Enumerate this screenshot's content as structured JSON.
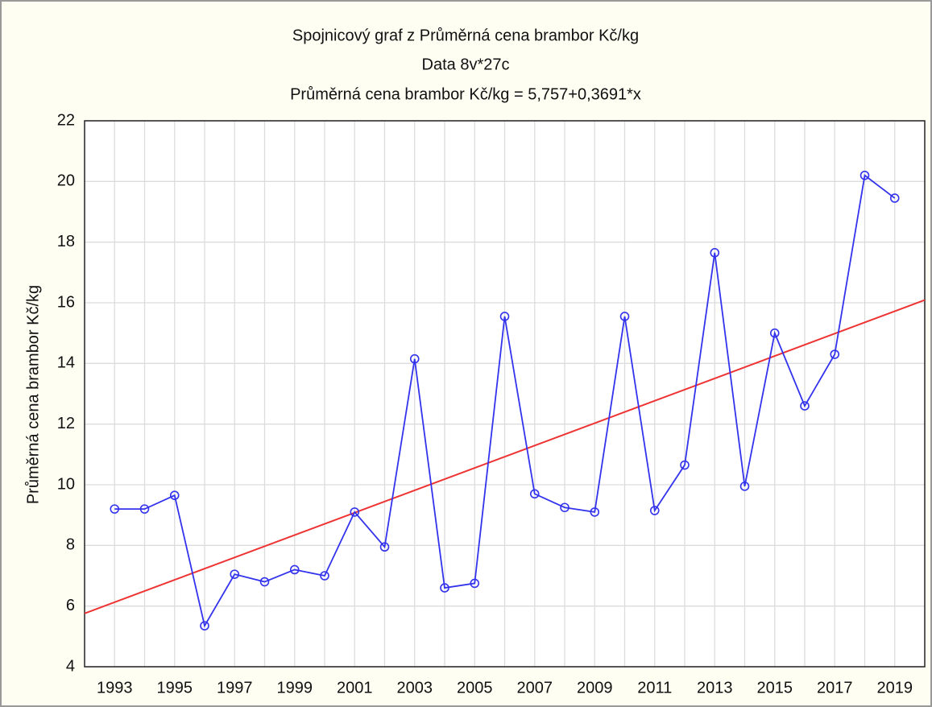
{
  "chart_data": {
    "type": "line",
    "title": "Spojnicový graf z Průměrná cena brambor Kč/kg",
    "subtitle": "Data 8v*27c",
    "equation": "Průměrná cena brambor Kč/kg = 5,757+0,3691*x",
    "ylabel": "Průměrná cena brambor Kč/kg",
    "x": [
      1993,
      1994,
      1995,
      1996,
      1997,
      1998,
      1999,
      2000,
      2001,
      2002,
      2003,
      2004,
      2005,
      2006,
      2007,
      2008,
      2009,
      2010,
      2011,
      2012,
      2013,
      2014,
      2015,
      2016,
      2017,
      2018,
      2019
    ],
    "series": [
      {
        "color": "#3333ee",
        "values": [
          9.2,
          9.2,
          9.65,
          5.35,
          7.05,
          6.8,
          7.2,
          7.0,
          9.1,
          7.95,
          14.15,
          6.6,
          6.75,
          15.55,
          9.7,
          9.25,
          9.1,
          15.55,
          9.15,
          10.65,
          17.65,
          9.95,
          15.0,
          12.6,
          14.3,
          20.2,
          19.45
        ]
      }
    ],
    "trend": {
      "color": "#ee3333",
      "x": [
        1992,
        2020
      ],
      "values": [
        5.757,
        16.09
      ]
    },
    "xlim": [
      1992,
      2020
    ],
    "xticks": [
      1993,
      1995,
      1997,
      1999,
      2001,
      2003,
      2005,
      2007,
      2009,
      2011,
      2013,
      2015,
      2017,
      2019
    ],
    "ylim": [
      4,
      22
    ],
    "yticks": [
      4,
      6,
      8,
      10,
      12,
      14,
      16,
      18,
      20,
      22
    ],
    "grid": true
  }
}
